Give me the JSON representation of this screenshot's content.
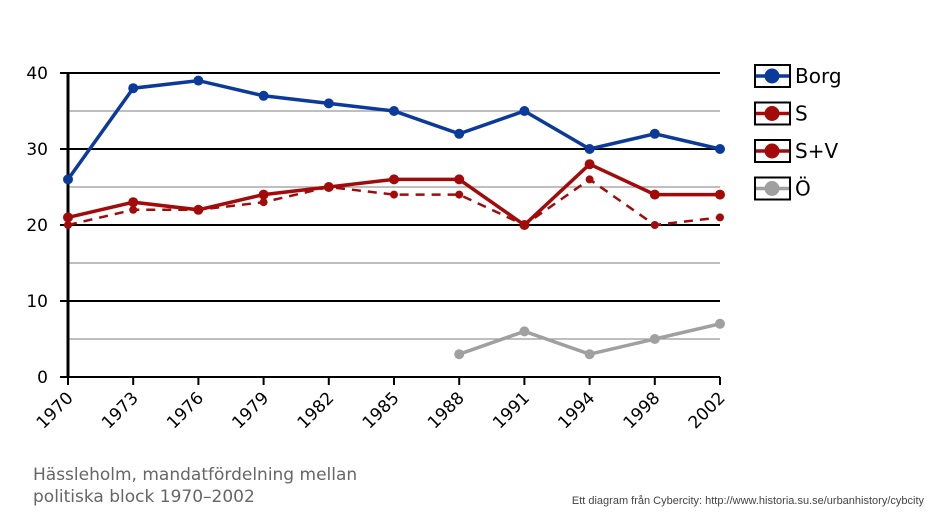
{
  "chart_data": {
    "type": "line",
    "title": "Hässleholm, mandatfördelning mellan politiska block 1970-2002",
    "categories": [
      "1970",
      "1973",
      "1976",
      "1979",
      "1982",
      "1985",
      "1988",
      "1991",
      "1994",
      "1998",
      "2002"
    ],
    "ylim": [
      0,
      40
    ],
    "yticks": [
      0,
      10,
      20,
      30,
      40
    ],
    "grid": true,
    "legend_position": "right",
    "series": [
      {
        "name": "Borg",
        "color": "#0b3a9b",
        "dashed": false,
        "values": [
          26,
          38,
          39,
          37,
          36,
          35,
          32,
          35,
          30,
          32,
          30
        ]
      },
      {
        "name": "S",
        "color": "#a30b0b",
        "dashed": true,
        "values": [
          20,
          22,
          22,
          23,
          25,
          24,
          24,
          20,
          26,
          20,
          21
        ]
      },
      {
        "name": "S+V",
        "color": "#a30b0b",
        "dashed": false,
        "values": [
          21,
          23,
          22,
          24,
          25,
          26,
          26,
          20,
          28,
          24,
          24
        ]
      },
      {
        "name": "Ö",
        "color": "#a0a0a0",
        "dashed": false,
        "values": [
          null,
          null,
          null,
          null,
          null,
          null,
          3,
          6,
          3,
          5,
          7
        ]
      }
    ]
  },
  "caption_line1": "Hässleholm, mandatfördelning mellan",
  "caption_line2": "politiska block 1970–2002",
  "credit": "Ett diagram från Cybercity: http://www.historia.su.se/urbanhistory/cybcity"
}
